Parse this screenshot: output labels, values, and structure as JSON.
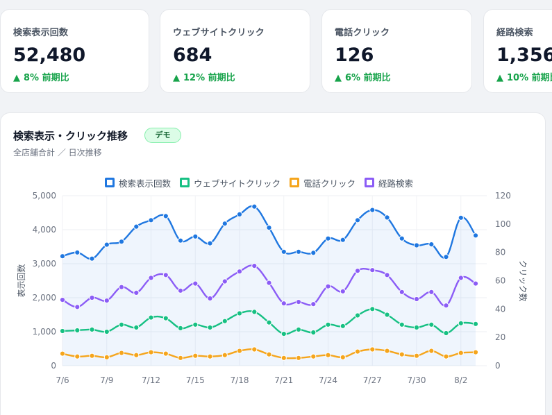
{
  "kpis": [
    {
      "label": "検索表示回数",
      "value": "52,480",
      "delta": "8% 前期比"
    },
    {
      "label": "ウェブサイトクリック",
      "value": "684",
      "delta": "12% 前期比"
    },
    {
      "label": "電話クリック",
      "value": "126",
      "delta": "6% 前期比"
    },
    {
      "label": "経路検索",
      "value": "1,356",
      "delta": "10% 前期比"
    }
  ],
  "panel": {
    "title": "検索表示・クリック推移",
    "badge": "デモ",
    "subtitle": "全店舗合計 ／ 日次推移"
  },
  "colors": {
    "impressions": "#1f77e0",
    "web": "#16c083",
    "phone": "#f5a51c",
    "route": "#8b5cf6",
    "delta_up": "#16a34a"
  },
  "chart_data": {
    "type": "line",
    "x": [
      "7/6",
      "7/7",
      "7/8",
      "7/9",
      "7/10",
      "7/11",
      "7/12",
      "7/13",
      "7/14",
      "7/15",
      "7/16",
      "7/17",
      "7/18",
      "7/19",
      "7/20",
      "7/21",
      "7/22",
      "7/23",
      "7/24",
      "7/25",
      "7/26",
      "7/27",
      "7/28",
      "7/29",
      "7/30",
      "7/31",
      "8/1",
      "8/2",
      "8/3"
    ],
    "xticks": [
      "7/6",
      "7/9",
      "7/12",
      "7/15",
      "7/18",
      "7/21",
      "7/24",
      "7/27",
      "7/30",
      "8/2"
    ],
    "series": [
      {
        "name": "検索表示回数",
        "axis": "left",
        "values": [
          3220,
          3330,
          3150,
          3560,
          3650,
          4090,
          4280,
          4400,
          3680,
          3800,
          3600,
          4180,
          4450,
          4680,
          4060,
          3350,
          3350,
          3320,
          3740,
          3700,
          4280,
          4580,
          4360,
          3740,
          3540,
          3570,
          3200,
          4350,
          3830
        ]
      },
      {
        "name": "ウェブサイトクリック",
        "axis": "right",
        "values": [
          24.5,
          25,
          25.5,
          24,
          29,
          27,
          34,
          33.5,
          26.5,
          29,
          27,
          31.5,
          37,
          38,
          30.5,
          22.5,
          25.5,
          23.5,
          29,
          28,
          35.5,
          40,
          36,
          29,
          27,
          29,
          23,
          30,
          29.5
        ]
      },
      {
        "name": "電話クリック",
        "axis": "right",
        "values": [
          8.5,
          6.5,
          7,
          6,
          9,
          7.5,
          9.5,
          8.5,
          5.5,
          7,
          6.5,
          7.5,
          10.5,
          11.5,
          8,
          5.5,
          5.5,
          6.5,
          7.5,
          6,
          10,
          11.5,
          10.5,
          8,
          7,
          10.5,
          6.5,
          9,
          9.5
        ]
      },
      {
        "name": "経路検索",
        "axis": "right",
        "values": [
          46.5,
          41.5,
          48,
          46,
          55.5,
          51.5,
          62,
          64,
          53,
          58,
          47.5,
          59.5,
          66.5,
          70.5,
          58.5,
          44,
          45,
          43.5,
          56,
          52.5,
          67,
          67.5,
          64,
          52,
          47,
          52,
          42.5,
          62,
          58
        ]
      }
    ],
    "y_left": {
      "label": "表示回数",
      "range": [
        0,
        5000
      ],
      "ticks": [
        "0",
        "1,000",
        "2,000",
        "3,000",
        "4,000",
        "5,000"
      ]
    },
    "y_right": {
      "label": "クリック数",
      "range": [
        0,
        120
      ],
      "ticks": [
        "0",
        "20",
        "40",
        "60",
        "80",
        "100",
        "120"
      ]
    },
    "grid": true,
    "legend_position": "top"
  }
}
